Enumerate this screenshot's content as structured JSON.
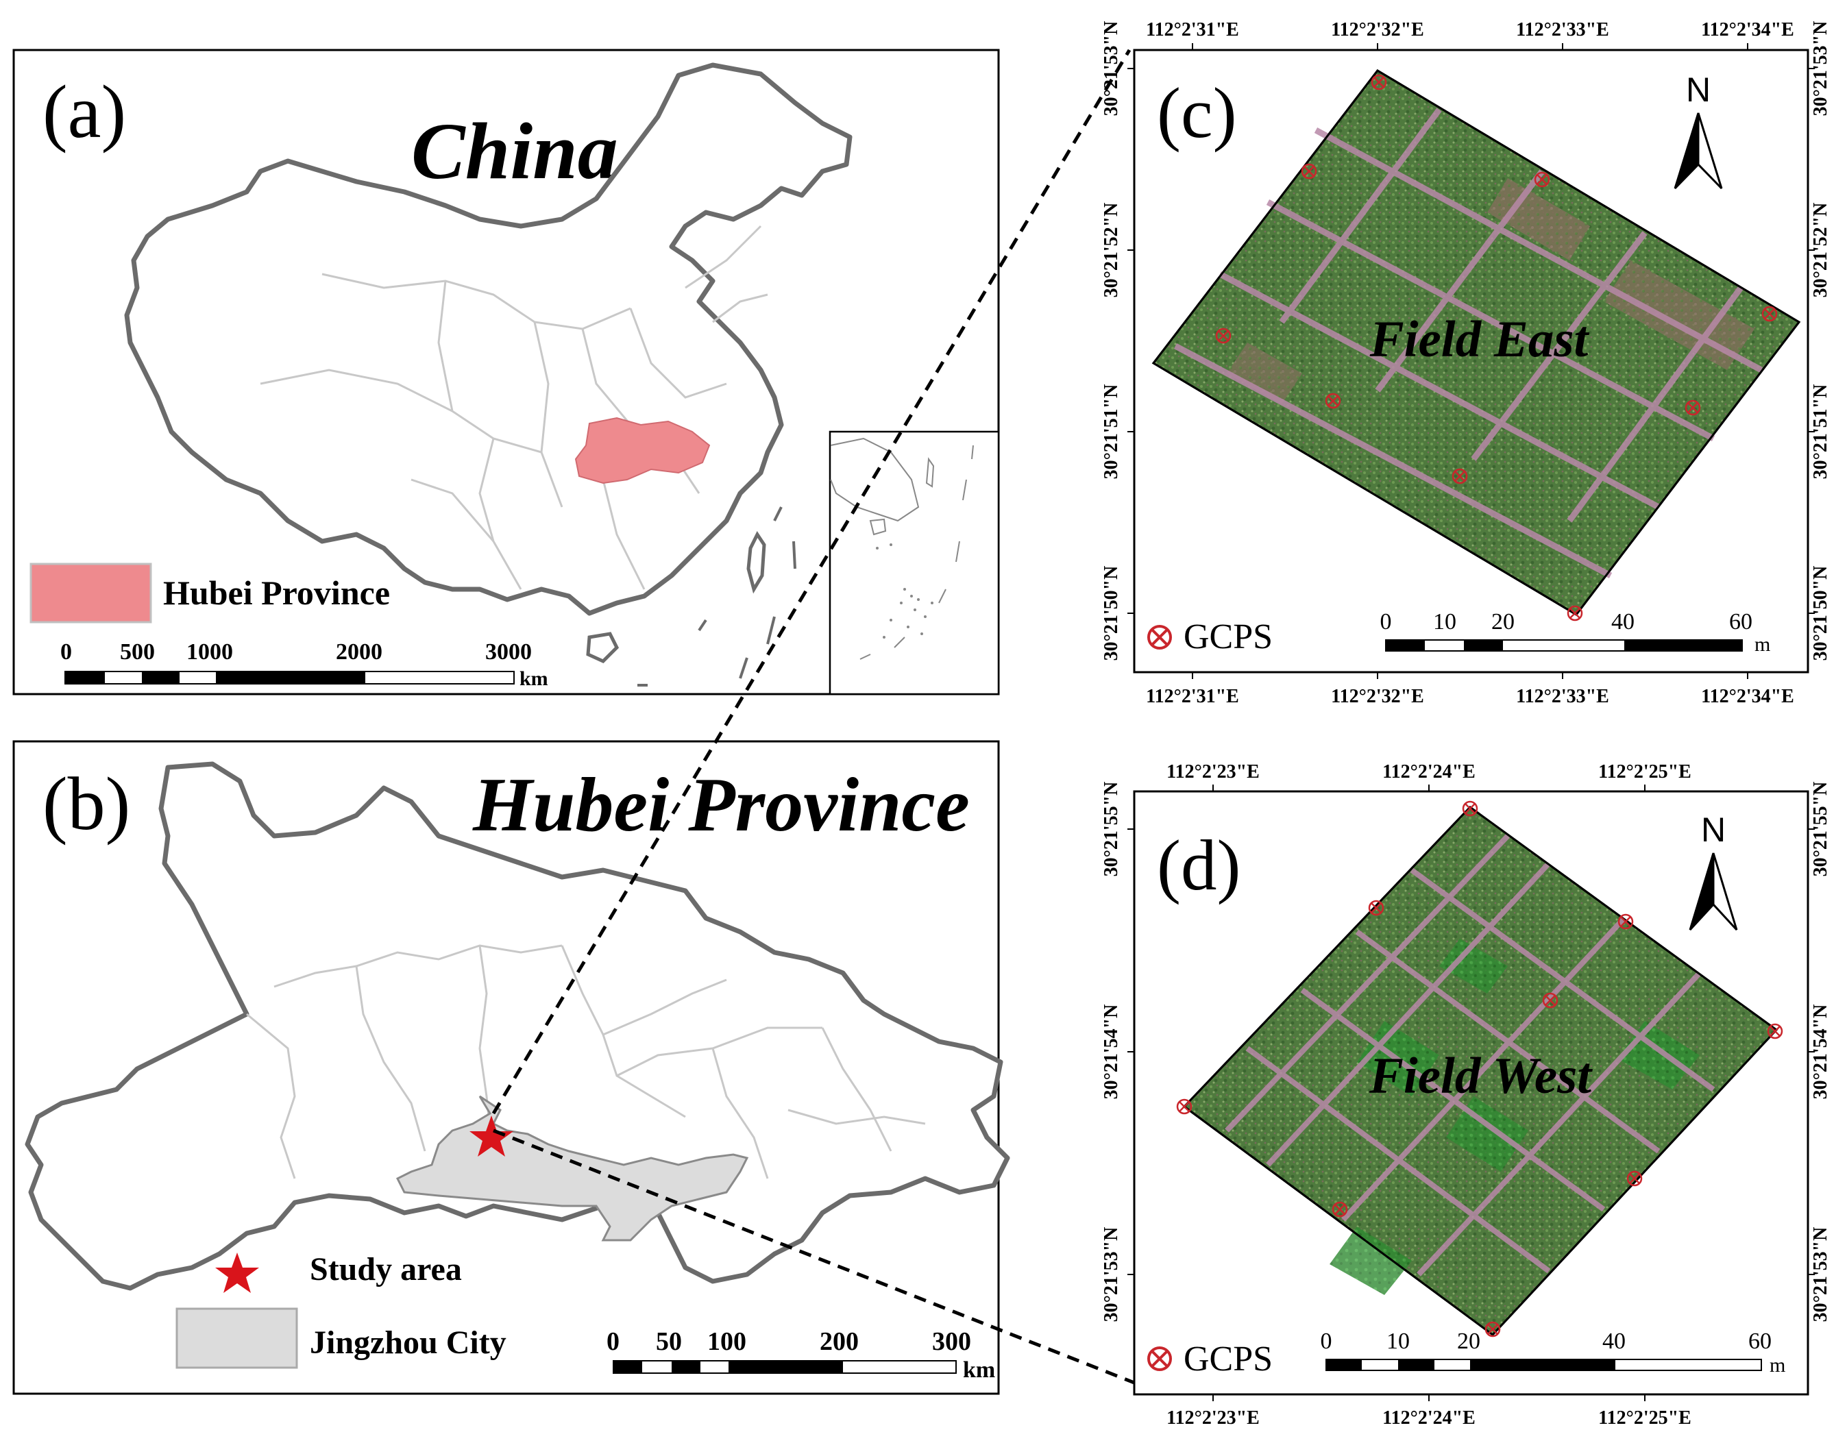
{
  "panel_a": {
    "label": "(a)",
    "title": "China",
    "legend_label": "Hubei Province",
    "scale_ticks": [
      "0",
      "500",
      "1000",
      "2000",
      "3000"
    ],
    "scale_unit": "km",
    "colors": {
      "hubei_fill": "#ee8a8e",
      "boundary": "#6b6b6b",
      "province_lines": "#c8c8c8"
    }
  },
  "panel_b": {
    "label": "(b)",
    "title": "Hubei Province",
    "legend_study": "Study area",
    "legend_city": "Jingzhou City",
    "scale_ticks": [
      "0",
      "50",
      "100",
      "200",
      "300"
    ],
    "scale_unit": "km",
    "colors": {
      "jingzhou_fill": "#dcdcdc",
      "star": "#d9141b"
    }
  },
  "panel_c": {
    "label": "(c)",
    "field_name": "Field East",
    "north": "N",
    "gcp_label": "GCPS",
    "lon_ticks": [
      "112°2'31\"E",
      "112°2'32\"E",
      "112°2'33\"E",
      "112°2'34\"E"
    ],
    "lat_ticks": [
      "30°21'53\"N",
      "30°21'52\"N",
      "30°21'51\"N",
      "30°21'50\"N"
    ],
    "scale_ticks": [
      "0",
      "10",
      "20",
      "40",
      "60"
    ],
    "scale_unit": "m"
  },
  "panel_d": {
    "label": "(d)",
    "field_name": "Field West",
    "north": "N",
    "gcp_label": "GCPS",
    "lon_ticks": [
      "112°2'23\"E",
      "112°2'24\"E",
      "112°2'25\"E"
    ],
    "lat_ticks": [
      "30°21'55\"N",
      "30°21'54\"N",
      "30°21'53\"N"
    ],
    "scale_ticks": [
      "0",
      "10",
      "20",
      "40",
      "60"
    ],
    "scale_unit": "m"
  }
}
